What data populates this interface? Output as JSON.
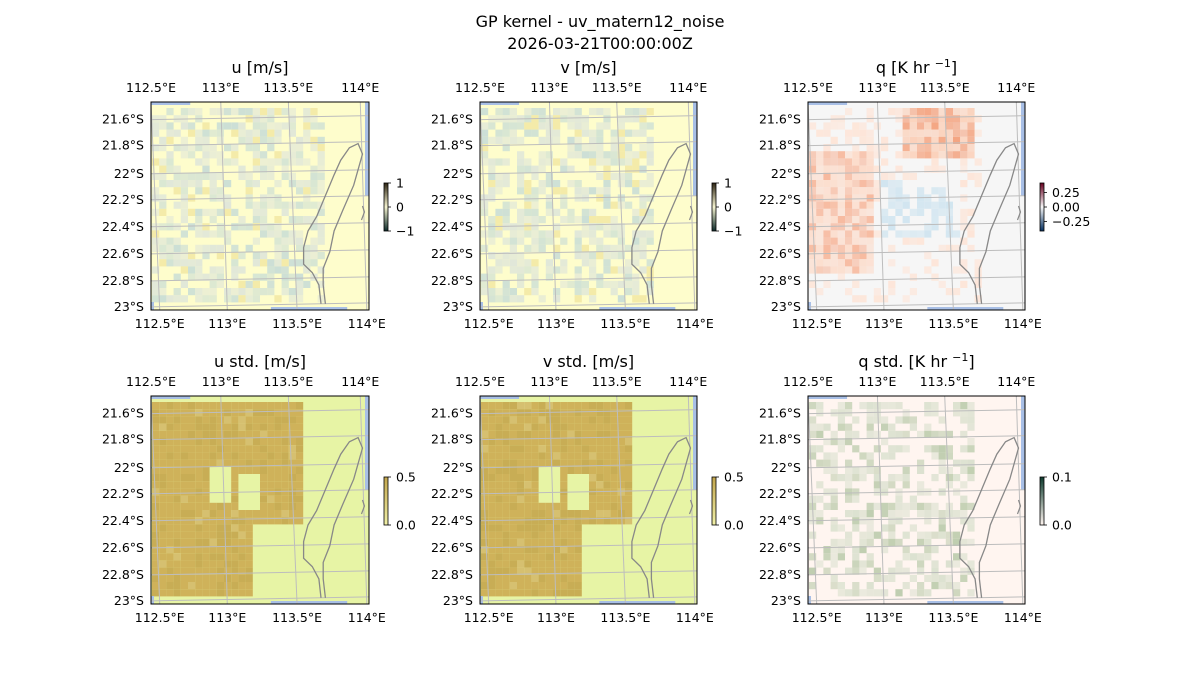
{
  "figure": {
    "title_line1": "GP kernel - uv_matern12_noise",
    "title_line2": "2026-03-21T00:00:00Z"
  },
  "axes": {
    "lon_ticks": [
      "112.5°E",
      "113°E",
      "113.5°E",
      "114°E"
    ],
    "lat_ticks": [
      "21.6°S",
      "21.8°S",
      "22°S",
      "22.2°S",
      "22.4°S",
      "22.6°S",
      "22.8°S",
      "23°S"
    ]
  },
  "colors": {
    "ocean": "#a8bfe6",
    "coast": "#888888",
    "grid": "#bdbdbd"
  },
  "chart_data": [
    {
      "type": "heatmap",
      "id": "u",
      "title_main": "u",
      "title_unit": "[m/s]",
      "title_sup": "",
      "background": "#fefdcc",
      "colorbar_ticks": [
        "1",
        "0",
        "−1"
      ],
      "colorbar_colors": [
        "#2d2413",
        "#f5f3d0",
        "#0c2a2a"
      ],
      "lon_range": [
        112.5,
        114.1
      ],
      "lat_range": [
        -23.0,
        -21.5
      ]
    },
    {
      "type": "heatmap",
      "id": "v",
      "title_main": "v",
      "title_unit": "[m/s]",
      "title_sup": "",
      "background": "#fefdcc",
      "colorbar_ticks": [
        "1",
        "0",
        "−1"
      ],
      "colorbar_colors": [
        "#2d2413",
        "#f5f3d0",
        "#0c2a2a"
      ],
      "lon_range": [
        112.5,
        114.1
      ],
      "lat_range": [
        -23.0,
        -21.5
      ]
    },
    {
      "type": "heatmap",
      "id": "q",
      "title_main": "q",
      "title_unit": "[K hr ",
      "title_sup": "−1",
      "title_close": "]",
      "background": "#f6f6f6",
      "colorbar_ticks": [
        "0.25",
        "0.00",
        "−0.25"
      ],
      "colorbar_colors": [
        "#67001f",
        "#f7f7f7",
        "#053061"
      ],
      "lon_range": [
        112.5,
        114.1
      ],
      "lat_range": [
        -23.0,
        -21.5
      ]
    },
    {
      "type": "heatmap",
      "id": "ustd",
      "title_main": "u std.",
      "title_unit": "[m/s]",
      "title_sup": "",
      "background": "#e7f4a5",
      "colorbar_ticks": [
        "0.5",
        "0.0"
      ],
      "colorbar_colors": [
        "#c2a54c",
        "#f0f0a8"
      ],
      "lon_range": [
        112.5,
        114.1
      ],
      "lat_range": [
        -23.0,
        -21.5
      ]
    },
    {
      "type": "heatmap",
      "id": "vstd",
      "title_main": "v std.",
      "title_unit": "[m/s]",
      "title_sup": "",
      "background": "#e7f4a5",
      "colorbar_ticks": [
        "0.5",
        "0.0"
      ],
      "colorbar_colors": [
        "#c2a54c",
        "#f0f0a8"
      ],
      "lon_range": [
        112.5,
        114.1
      ],
      "lat_range": [
        -23.0,
        -21.5
      ]
    },
    {
      "type": "heatmap",
      "id": "qstd",
      "title_main": "q std.",
      "title_unit": "[K hr ",
      "title_sup": "−1",
      "title_close": "]",
      "background": "#fff5f0",
      "colorbar_ticks": [
        "0.1",
        "0.0"
      ],
      "colorbar_colors": [
        "#0d3b2e",
        "#fff5f0"
      ],
      "lon_range": [
        112.5,
        114.1
      ],
      "lat_range": [
        -23.0,
        -21.5
      ]
    }
  ]
}
